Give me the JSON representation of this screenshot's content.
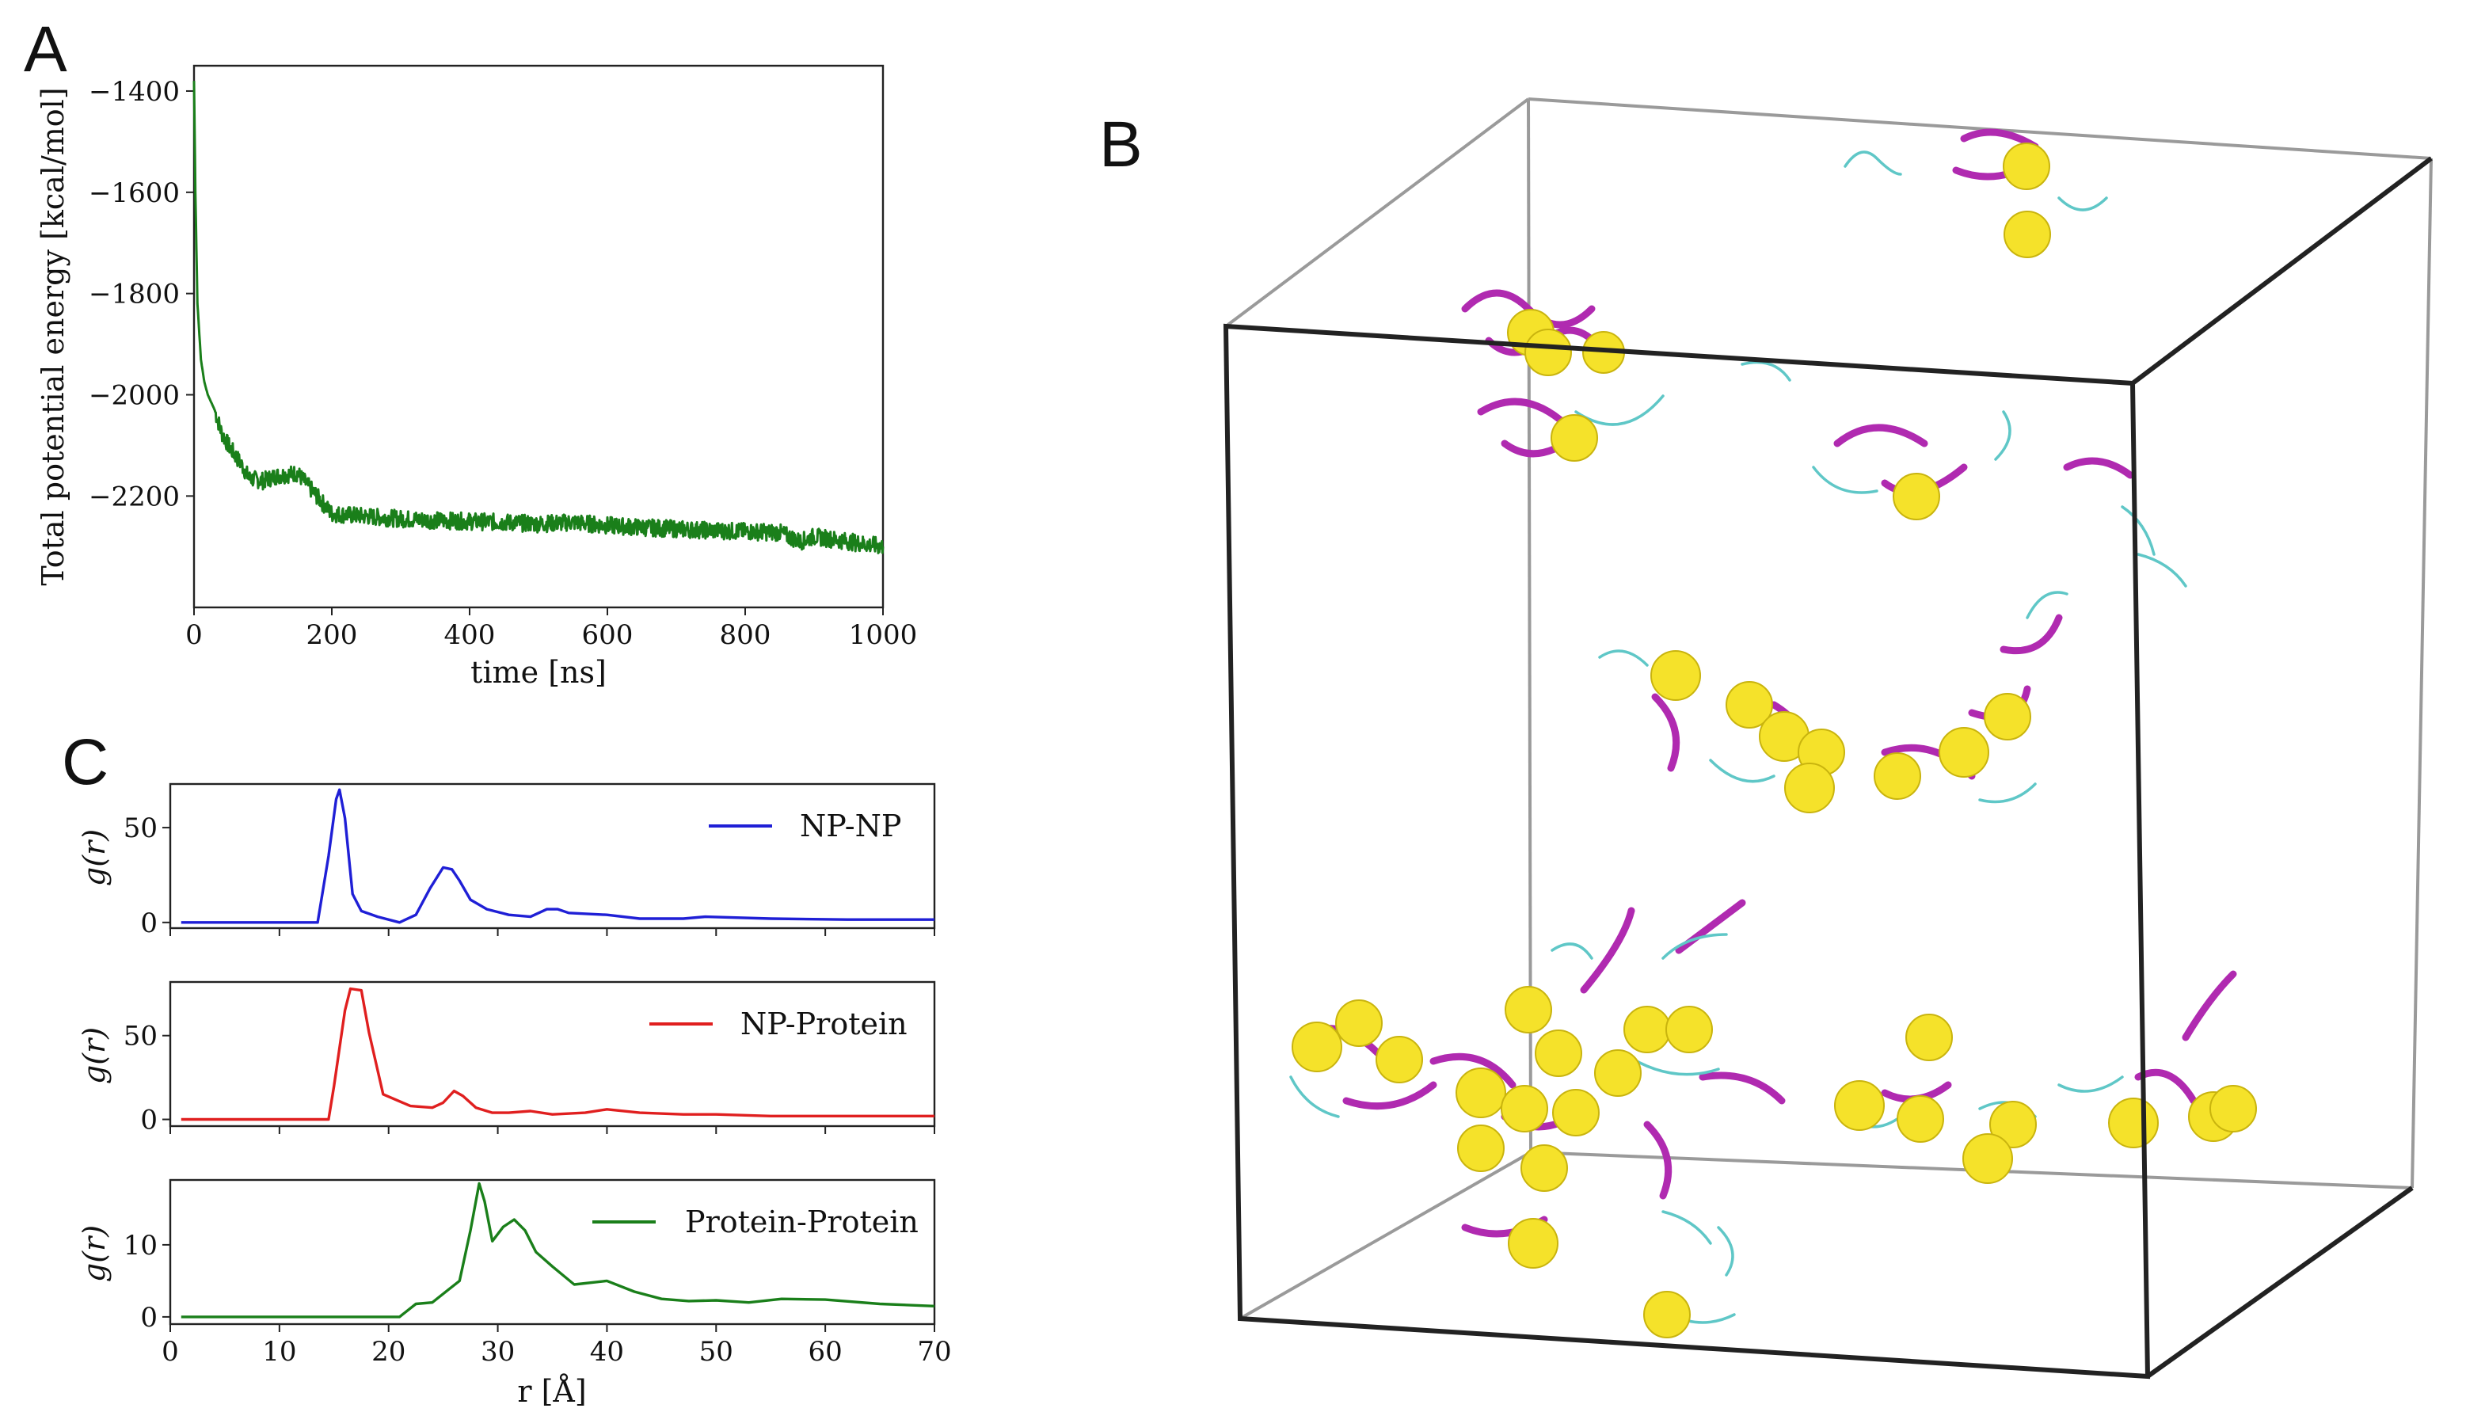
{
  "panels": {
    "a": "A",
    "b": "B",
    "c": "C"
  },
  "chart_data": [
    {
      "panel": "A",
      "type": "line",
      "xlabel": "time [ns]",
      "ylabel": "Total potential energy [kcal/mol]",
      "xlim": [
        0,
        1000
      ],
      "ylim": [
        -2420,
        -1350
      ],
      "xticks": [
        0,
        200,
        400,
        600,
        800,
        1000
      ],
      "yticks": [
        -1400,
        -1600,
        -1800,
        -2000,
        -2200
      ],
      "color": "#1a7f1a",
      "series": [
        {
          "name": "Total potential energy",
          "x": [
            0,
            2,
            5,
            10,
            15,
            20,
            30,
            40,
            50,
            60,
            70,
            80,
            100,
            120,
            150,
            175,
            200,
            250,
            300,
            350,
            400,
            450,
            500,
            550,
            600,
            650,
            700,
            750,
            800,
            850,
            880,
            900,
            950,
            1000
          ],
          "y": [
            -1380,
            -1600,
            -1820,
            -1930,
            -1975,
            -2000,
            -2030,
            -2075,
            -2100,
            -2120,
            -2140,
            -2165,
            -2170,
            -2160,
            -2155,
            -2195,
            -2235,
            -2240,
            -2245,
            -2248,
            -2250,
            -2252,
            -2255,
            -2252,
            -2258,
            -2262,
            -2265,
            -2268,
            -2270,
            -2272,
            -2290,
            -2280,
            -2290,
            -2300
          ]
        }
      ]
    },
    {
      "panel": "C",
      "type": "line",
      "xlabel": "r [Å]",
      "ylabel": "g(r)",
      "xlim": [
        0,
        70
      ],
      "xticks": [
        0,
        10,
        20,
        30,
        40,
        50,
        60,
        70
      ],
      "series": [
        {
          "name": "NP-NP",
          "color": "#1f1fd6",
          "yticks": [
            0,
            50
          ],
          "ylim": [
            -3,
            73
          ],
          "x": [
            1,
            13.5,
            14.5,
            15.2,
            15.5,
            16,
            16.7,
            17.5,
            19,
            21,
            22.5,
            23.8,
            25,
            25.8,
            26.5,
            27.5,
            29,
            31,
            33,
            34.5,
            35.5,
            36.5,
            40,
            43,
            47,
            49,
            55,
            62,
            70
          ],
          "y": [
            0,
            0,
            35,
            65,
            70,
            55,
            15,
            6,
            3,
            0,
            4,
            18,
            29,
            28,
            22,
            12,
            7,
            4,
            3,
            7,
            7,
            5,
            4,
            2,
            2,
            3,
            2,
            1.5,
            1.5
          ]
        },
        {
          "name": "NP-Protein",
          "color": "#e01f1f",
          "yticks": [
            0,
            50
          ],
          "ylim": [
            -4,
            82
          ],
          "x": [
            1,
            14.5,
            15,
            16,
            16.5,
            17.5,
            18.2,
            19.5,
            22,
            24,
            25,
            26,
            26.8,
            28,
            29.5,
            31,
            33,
            35,
            38,
            40,
            43,
            47,
            50,
            55,
            60,
            70
          ],
          "y": [
            0,
            0,
            20,
            65,
            78,
            77,
            52,
            15,
            8,
            7,
            10,
            17,
            14,
            7,
            4,
            4,
            5,
            3,
            4,
            6,
            4,
            3,
            3,
            2,
            2,
            2
          ]
        },
        {
          "name": "Protein-Protein",
          "color": "#1a7f1a",
          "yticks": [
            0,
            10
          ],
          "ylim": [
            -1,
            19
          ],
          "x": [
            1,
            21,
            22.5,
            24,
            25.5,
            26.5,
            27.5,
            28.3,
            28.8,
            29.5,
            30.5,
            31.5,
            32.5,
            33.5,
            35,
            37,
            40,
            42.5,
            45,
            47.5,
            50,
            53,
            56,
            60,
            65,
            70
          ],
          "y": [
            0,
            0,
            1.8,
            2,
            3.8,
            5,
            12,
            18.5,
            16,
            10.5,
            12.5,
            13.5,
            12,
            9,
            7,
            4.5,
            5,
            3.5,
            2.5,
            2.2,
            2.3,
            2,
            2.5,
            2.4,
            1.8,
            1.5
          ]
        }
      ]
    }
  ]
}
